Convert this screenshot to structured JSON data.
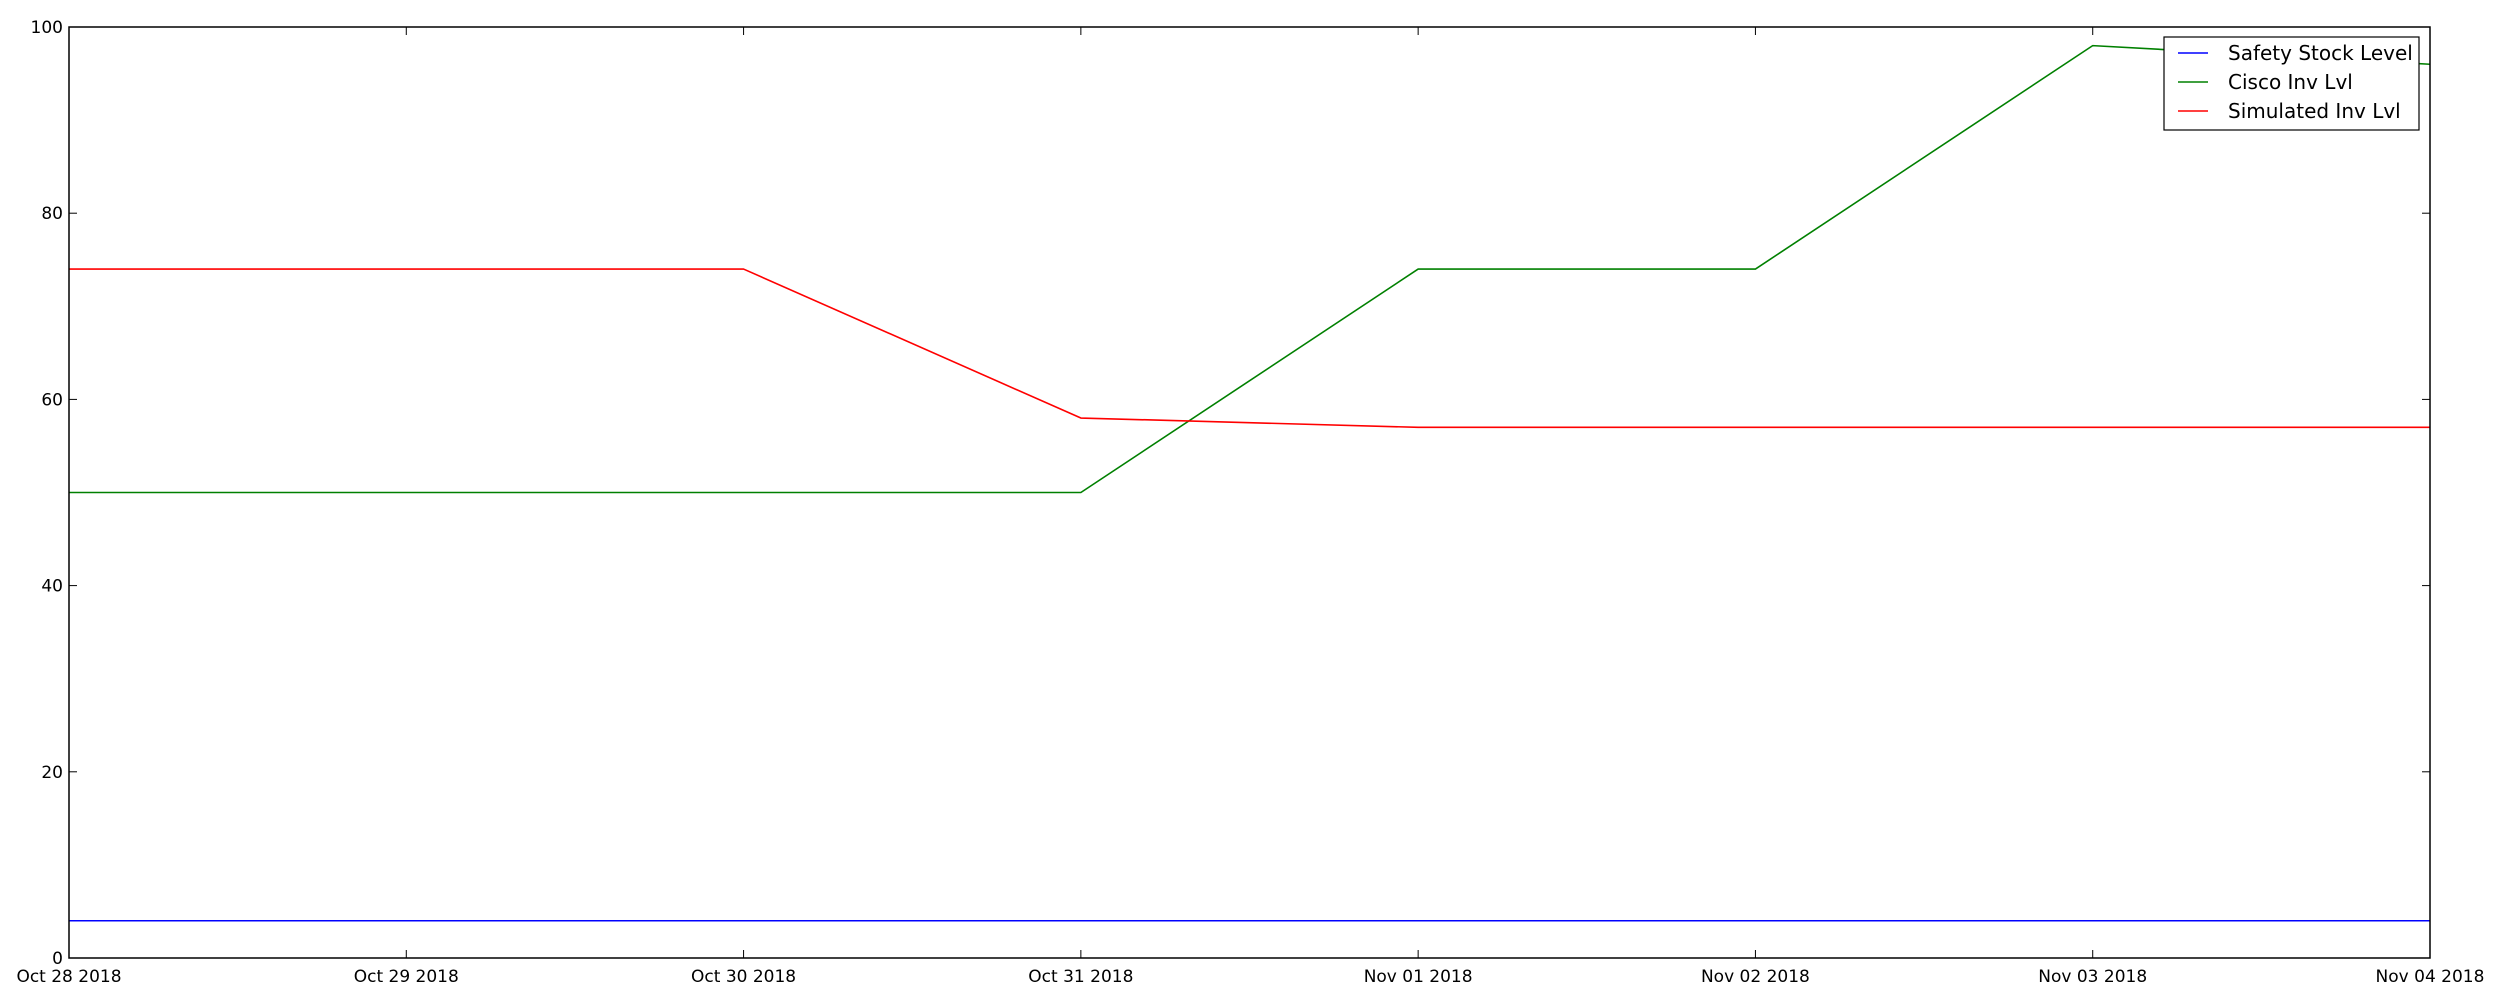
{
  "chart_data": {
    "type": "line",
    "title": "",
    "xlabel": "",
    "ylabel": "",
    "x": [
      "Oct 28 2018",
      "Oct 29 2018",
      "Oct 30 2018",
      "Oct 31 2018",
      "Nov 01 2018",
      "Nov 02 2018",
      "Nov 03 2018",
      "Nov 04 2018"
    ],
    "ylim": [
      0,
      100
    ],
    "yticks": [
      0,
      20,
      40,
      60,
      80,
      100
    ],
    "grid": false,
    "legend_position": "top-right",
    "series": [
      {
        "name": "Safety Stock Level",
        "color": "#0000ff",
        "values": [
          4,
          4,
          4,
          4,
          4,
          4,
          4,
          4
        ]
      },
      {
        "name": "Cisco Inv Lvl",
        "color": "#008000",
        "values": [
          50,
          50,
          50,
          50,
          74,
          74,
          98,
          96
        ]
      },
      {
        "name": "Simulated Inv Lvl",
        "color": "#ff0000",
        "values": [
          74,
          74,
          74,
          58,
          57,
          57,
          57,
          57
        ]
      }
    ]
  }
}
